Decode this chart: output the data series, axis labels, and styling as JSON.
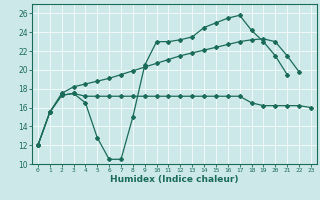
{
  "xlabel": "Humidex (Indice chaleur)",
  "xlim": [
    -0.5,
    23.5
  ],
  "ylim": [
    10,
    27
  ],
  "yticks": [
    10,
    12,
    14,
    16,
    18,
    20,
    22,
    24,
    26
  ],
  "xticks": [
    0,
    1,
    2,
    3,
    4,
    5,
    6,
    7,
    8,
    9,
    10,
    11,
    12,
    13,
    14,
    15,
    16,
    17,
    18,
    19,
    20,
    21,
    22,
    23
  ],
  "bg_color": "#cde8e8",
  "line_color": "#1a6b5a",
  "line1_x": [
    0,
    1,
    2,
    3,
    4,
    5,
    6,
    7,
    8,
    9,
    10,
    11,
    12,
    13,
    14,
    15,
    16,
    17,
    18,
    19,
    20,
    21
  ],
  "line1_y": [
    12,
    15.5,
    17.3,
    17.5,
    16.5,
    12.8,
    10.5,
    10.5,
    15.0,
    20.5,
    23.0,
    23.0,
    23.2,
    23.5,
    24.5,
    25.0,
    25.5,
    25.8,
    24.2,
    23.0,
    21.5,
    19.5
  ],
  "line2_x": [
    0,
    1,
    2,
    3,
    4,
    5,
    6,
    7,
    8,
    9,
    10,
    11,
    12,
    13,
    14,
    15,
    16,
    17,
    18,
    19,
    20,
    21,
    22,
    23
  ],
  "line2_y": [
    12,
    15.5,
    17.3,
    17.5,
    17.2,
    17.2,
    17.2,
    17.2,
    17.2,
    17.2,
    17.2,
    17.2,
    17.2,
    17.2,
    17.2,
    17.2,
    17.2,
    17.2,
    16.5,
    16.2,
    16.2,
    16.2,
    16.2,
    16.0
  ],
  "line3_x": [
    0,
    1,
    2,
    3,
    4,
    5,
    6,
    7,
    8,
    9,
    10,
    11,
    12,
    13,
    14,
    15,
    16,
    17,
    18,
    19,
    20,
    21,
    22
  ],
  "line3_y": [
    12,
    15.5,
    17.5,
    18.2,
    18.5,
    18.8,
    19.1,
    19.5,
    19.9,
    20.3,
    20.7,
    21.1,
    21.5,
    21.8,
    22.1,
    22.4,
    22.7,
    23.0,
    23.2,
    23.3,
    23.0,
    21.5,
    19.8
  ]
}
